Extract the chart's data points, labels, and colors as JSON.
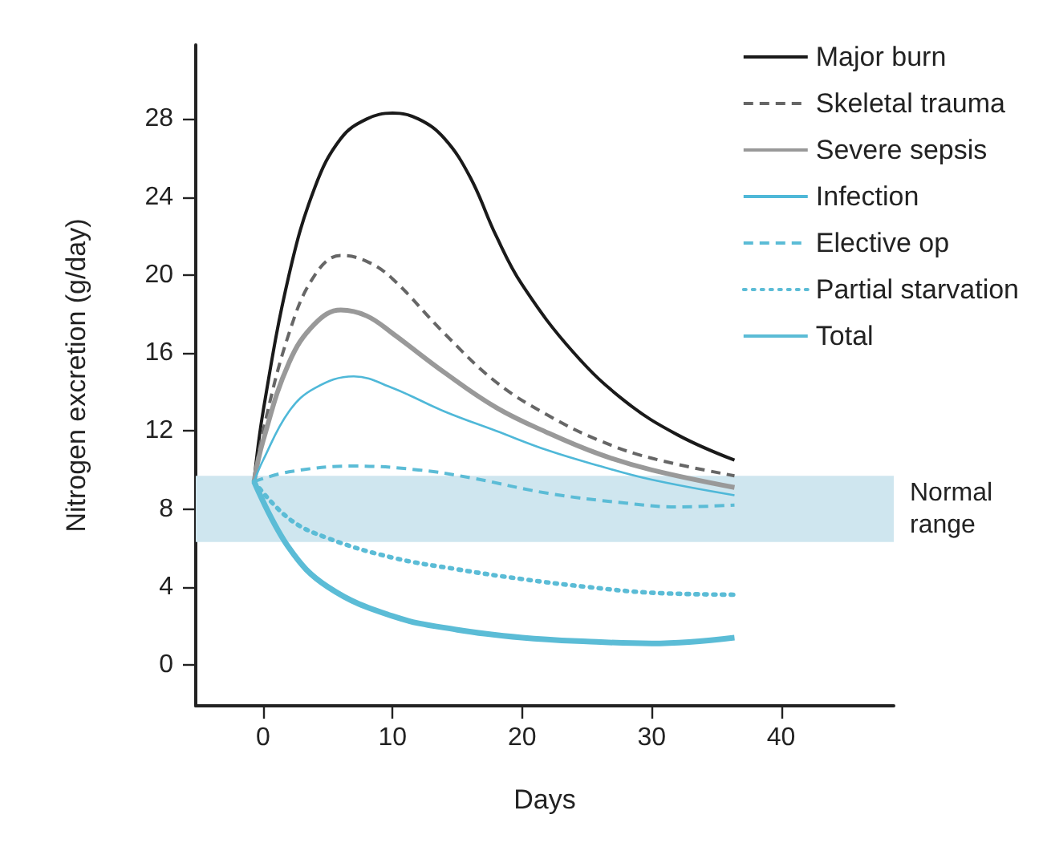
{
  "chart_data": {
    "type": "line",
    "xlabel": "Days",
    "ylabel": "Nitrogen excretion (g/day)",
    "xlim": [
      -5.2,
      48.7
    ],
    "xticks": [
      0,
      10,
      20,
      30,
      40
    ],
    "ylim": [
      -2.1,
      31.8
    ],
    "yticks": [
      0,
      4,
      8,
      12,
      16,
      20,
      24,
      28
    ],
    "grid": false,
    "legend": "top right",
    "marker": "none",
    "bands": [
      {
        "axis": "y",
        "from": 6.3,
        "to": 9.7,
        "label": "Normal range",
        "color": "#cfe6ef"
      }
    ],
    "series": [
      {
        "name": "Major burn",
        "color": "#1a1a1a",
        "line_style": "solid",
        "x": [
          -0.7,
          0,
          2,
          4,
          6,
          8,
          10,
          12,
          14,
          16,
          18,
          20,
          24,
          28,
          32,
          36.4
        ],
        "values": [
          9.4,
          13,
          20,
          24.5,
          27,
          28,
          28.3,
          28,
          27,
          25,
          22,
          19.5,
          16,
          13.5,
          11.8,
          10.5
        ]
      },
      {
        "name": "Skeletal trauma",
        "color": "#666666",
        "line_style": "dashed",
        "x": [
          -0.7,
          0,
          2,
          4,
          6,
          8,
          10,
          14,
          18,
          22,
          26,
          30,
          36.4
        ],
        "values": [
          9.4,
          12,
          17,
          20,
          21,
          20.7,
          19.8,
          17,
          14.5,
          12.8,
          11.5,
          10.6,
          9.7
        ]
      },
      {
        "name": "Severe sepsis",
        "color": "#999999",
        "line_style": "solid",
        "x": [
          -0.7,
          0,
          2,
          4,
          6,
          8,
          10,
          14,
          18,
          22,
          26,
          30,
          36.4
        ],
        "values": [
          9.4,
          11.5,
          15.5,
          17.5,
          18.2,
          17.9,
          17,
          15,
          13.2,
          11.9,
          10.8,
          10,
          9.1
        ]
      },
      {
        "name": "Infection",
        "color": "#4fb8d8",
        "line_style": "solid",
        "x": [
          -0.7,
          0,
          2,
          4,
          7,
          10,
          14,
          18,
          22,
          26,
          30,
          36.4
        ],
        "values": [
          9.4,
          10.5,
          13,
          14.2,
          14.8,
          14.2,
          13,
          12,
          11,
          10.2,
          9.5,
          8.7
        ]
      },
      {
        "name": "Elective op",
        "color": "#5bbcd6",
        "line_style": "dashed",
        "x": [
          -0.7,
          2,
          7,
          12,
          16,
          22,
          28,
          32,
          36.4
        ],
        "values": [
          9.4,
          9.9,
          10.2,
          10,
          9.6,
          8.8,
          8.3,
          8.1,
          8.2
        ]
      },
      {
        "name": "Partial starvation",
        "color": "#5bbcd6",
        "line_style": "dotted",
        "x": [
          -0.7,
          2,
          5,
          10,
          15,
          20,
          25,
          30,
          36.4
        ],
        "values": [
          9.4,
          7.5,
          6.5,
          5.5,
          4.9,
          4.4,
          4,
          3.7,
          3.6
        ]
      },
      {
        "name": "Total",
        "color": "#5bbcd6",
        "line_style": "solid",
        "x": [
          -0.7,
          2,
          5,
          10,
          15,
          20,
          25,
          30,
          36.4
        ],
        "values": [
          9.4,
          6,
          4,
          2.5,
          1.8,
          1.4,
          1.2,
          1.1,
          1.4
        ]
      }
    ]
  }
}
